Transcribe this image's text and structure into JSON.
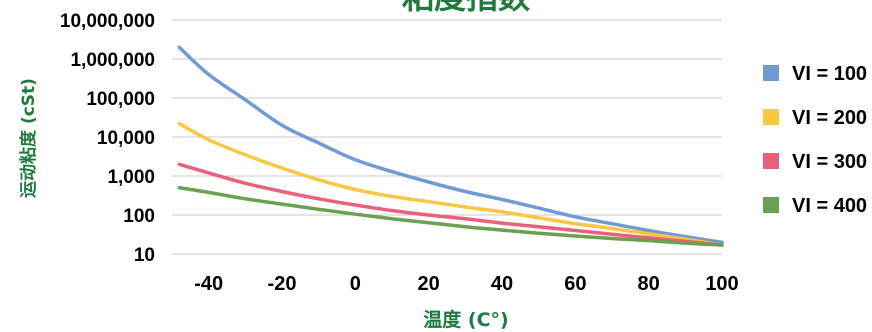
{
  "chart_data": {
    "type": "line",
    "title": "粘度指数",
    "xlabel": "温度 (C°)",
    "ylabel": "运动粘度 (cSt)",
    "y_scale": "log",
    "xlim": [
      -50,
      100
    ],
    "ylim": [
      10,
      10000000
    ],
    "x_ticks": [
      -40,
      -20,
      0,
      20,
      40,
      60,
      80,
      100
    ],
    "x_tick_labels": [
      "-40",
      "-20",
      "0",
      "20",
      "40",
      "60",
      "80",
      "100"
    ],
    "y_ticks": [
      10,
      100,
      1000,
      10000,
      100000,
      1000000,
      10000000
    ],
    "y_tick_labels": [
      "10",
      "100",
      "1,000",
      "10,000",
      "100,000",
      "1,000,000",
      "10,000,000"
    ],
    "grid": "horizontal",
    "legend_position": "right",
    "x": [
      -48,
      -40,
      -30,
      -20,
      -10,
      0,
      10,
      20,
      30,
      40,
      50,
      60,
      70,
      80,
      90,
      100
    ],
    "series": [
      {
        "name": "VI = 100",
        "color": "#6f9ad3",
        "values": [
          2000000,
          400000,
          90000,
          20000,
          7000,
          2600,
          1300,
          700,
          400,
          250,
          150,
          90,
          60,
          40,
          28,
          20
        ]
      },
      {
        "name": "VI = 200",
        "color": "#f5c842",
        "values": [
          22000,
          8500,
          3500,
          1600,
          800,
          450,
          300,
          220,
          160,
          120,
          85,
          60,
          45,
          33,
          24,
          17
        ]
      },
      {
        "name": "VI = 300",
        "color": "#e8607a",
        "values": [
          2000,
          1200,
          650,
          400,
          260,
          180,
          130,
          100,
          80,
          62,
          50,
          40,
          32,
          26,
          21,
          17
        ]
      },
      {
        "name": "VI = 400",
        "color": "#6aa050",
        "values": [
          500,
          380,
          260,
          190,
          140,
          105,
          80,
          63,
          50,
          41,
          34,
          29,
          25,
          22,
          19,
          17
        ]
      }
    ]
  }
}
